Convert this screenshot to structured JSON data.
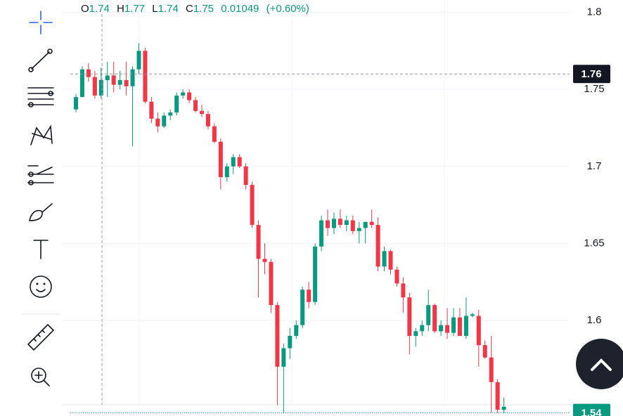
{
  "chart_data": {
    "type": "candlestick",
    "legend": {
      "open_label": "O",
      "open": 1.74,
      "high_label": "H",
      "high": 1.77,
      "low_label": "L",
      "low": 1.74,
      "close_label": "C",
      "close": 1.75,
      "change": 0.01049,
      "change_pct": "(+0.60%)"
    },
    "up_color": "#089981",
    "down_color": "#f23645",
    "open": [
      1.737,
      1.745,
      1.763,
      1.758,
      1.746,
      1.756,
      1.759,
      1.753,
      1.756,
      1.752,
      1.763,
      1.775,
      1.742,
      1.731,
      1.726,
      1.733,
      1.735,
      1.746,
      1.748,
      1.743,
      1.736,
      1.734,
      1.726,
      1.716,
      1.693,
      1.7,
      1.706,
      1.7,
      1.688,
      1.662,
      1.64,
      1.638,
      1.61,
      1.57,
      1.582,
      1.59,
      1.597,
      1.62,
      1.612,
      1.648,
      1.665,
      1.66,
      1.666,
      1.662,
      1.665,
      1.658,
      1.66,
      1.664,
      1.662,
      1.635,
      1.645,
      1.633,
      1.624,
      1.615,
      1.59,
      1.593,
      1.597,
      1.61,
      1.593,
      1.597,
      1.592,
      1.602,
      1.59,
      1.603,
      1.603,
      1.584,
      1.576,
      1.56,
      1.542
    ],
    "high": [
      1.747,
      1.765,
      1.767,
      1.762,
      1.764,
      1.768,
      1.768,
      1.762,
      1.768,
      1.765,
      1.78,
      1.777,
      1.745,
      1.735,
      1.735,
      1.737,
      1.748,
      1.75,
      1.75,
      1.745,
      1.74,
      1.736,
      1.728,
      1.718,
      1.702,
      1.708,
      1.708,
      1.702,
      1.69,
      1.665,
      1.65,
      1.64,
      1.612,
      1.585,
      1.595,
      1.6,
      1.622,
      1.625,
      1.65,
      1.668,
      1.672,
      1.67,
      1.672,
      1.668,
      1.668,
      1.664,
      1.664,
      1.672,
      1.667,
      1.648,
      1.646,
      1.635,
      1.628,
      1.618,
      1.595,
      1.6,
      1.62,
      1.611,
      1.6,
      1.608,
      1.608,
      1.608,
      1.615,
      1.605,
      1.607,
      1.587,
      1.59,
      1.562,
      1.55
    ],
    "low": [
      1.735,
      1.745,
      1.755,
      1.744,
      1.744,
      1.745,
      1.748,
      1.75,
      1.746,
      1.713,
      1.76,
      1.741,
      1.728,
      1.722,
      1.725,
      1.73,
      1.733,
      1.744,
      1.741,
      1.735,
      1.732,
      1.724,
      1.715,
      1.685,
      1.69,
      1.695,
      1.699,
      1.685,
      1.66,
      1.615,
      1.63,
      1.605,
      1.545,
      1.54,
      1.575,
      1.588,
      1.595,
      1.608,
      1.61,
      1.645,
      1.655,
      1.656,
      1.66,
      1.658,
      1.656,
      1.65,
      1.65,
      1.66,
      1.632,
      1.632,
      1.63,
      1.622,
      1.605,
      1.578,
      1.583,
      1.59,
      1.593,
      1.592,
      1.59,
      1.588,
      1.59,
      1.59,
      1.588,
      1.602,
      1.57,
      1.575,
      1.54,
      1.54,
      1.54
    ],
    "close": [
      1.745,
      1.763,
      1.758,
      1.746,
      1.756,
      1.759,
      1.753,
      1.756,
      1.752,
      1.763,
      1.775,
      1.742,
      1.731,
      1.726,
      1.733,
      1.735,
      1.746,
      1.748,
      1.743,
      1.736,
      1.734,
      1.726,
      1.716,
      1.693,
      1.7,
      1.706,
      1.7,
      1.688,
      1.662,
      1.64,
      1.638,
      1.61,
      1.57,
      1.582,
      1.59,
      1.597,
      1.62,
      1.612,
      1.648,
      1.665,
      1.66,
      1.666,
      1.662,
      1.665,
      1.658,
      1.66,
      1.664,
      1.662,
      1.635,
      1.645,
      1.633,
      1.624,
      1.615,
      1.59,
      1.593,
      1.597,
      1.61,
      1.593,
      1.597,
      1.592,
      1.602,
      1.59,
      1.603,
      1.604,
      1.584,
      1.576,
      1.56,
      1.542,
      1.544
    ],
    "ylim": [
      1.538,
      1.808
    ],
    "yticks": [
      1.8,
      1.75,
      1.7,
      1.65,
      1.6
    ],
    "crosshair_price": 1.76,
    "last_price": 1.54,
    "grid": true
  }
}
